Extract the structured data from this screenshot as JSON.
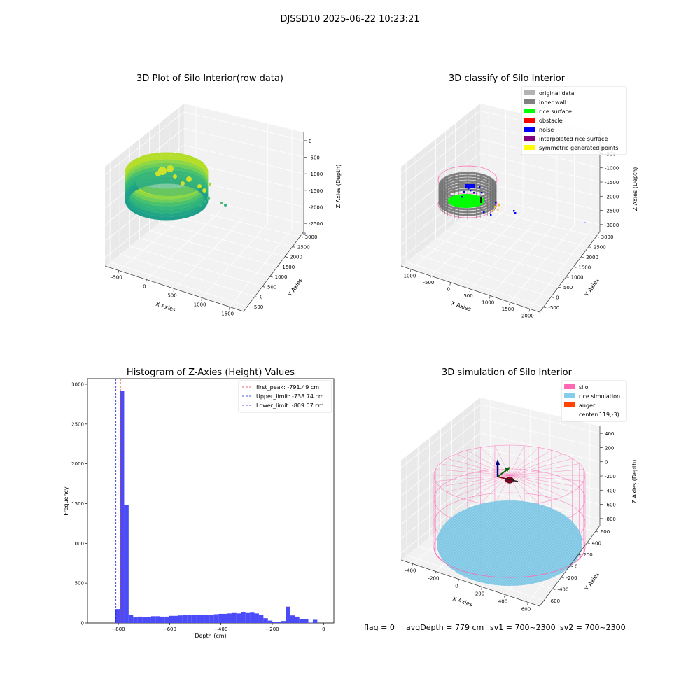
{
  "suptitle": "DJSSD10 2025-06-22 10:23:21",
  "footer": {
    "flag": "flag = 0",
    "avg": "avgDepth = 779 cm",
    "sv1": "sv1 = 700~2300",
    "sv2": "sv2 = 700~2300"
  },
  "colors": {
    "pane": "#f2f2f2",
    "pane_side": "#e9e9e9",
    "grid": "#ffffff",
    "hist_bar": "#4b4bf7",
    "peak_line": "#e53935",
    "limit_line": "#1a1ad9",
    "silo": "#ff69b4",
    "rice": "#87ceeb",
    "auger": "#ff4500",
    "original": "#b3b3b3",
    "inner_wall": "#808080",
    "rice_surface": "#00ff00",
    "obstacle": "#ff0000",
    "noise": "#0000ff",
    "interp": "#800080",
    "symmetric": "#ffff00"
  },
  "chart_data": [
    {
      "type": "scatter",
      "title": "3D Plot of Silo Interior(row data)",
      "xlabel": "X Axies",
      "ylabel": "Y Axies",
      "zlabel": "Z Axies (Depth)",
      "xticks": [
        "-500",
        "0",
        "500",
        "1000",
        "1500"
      ],
      "yticks": [
        "-500",
        "0",
        "500",
        "1000",
        "1500",
        "2000",
        "2500",
        "3000"
      ],
      "zticks": [
        "0",
        "-500",
        "-1000",
        "-1500",
        "-2000",
        "-2500"
      ],
      "colormap": "viridis"
    },
    {
      "type": "scatter",
      "title": "3D classify of Silo Interior",
      "xlabel": "X Axies",
      "ylabel": "Y Axies",
      "zlabel": "Z Axies (Depth)",
      "xticks": [
        "-1000",
        "-500",
        "0",
        "500",
        "1000",
        "1500",
        "2000"
      ],
      "yticks": [
        "-500",
        "0",
        "500",
        "1000",
        "1500",
        "2000",
        "2500",
        "3000"
      ],
      "zticks": [
        "0",
        "-500",
        "-1000",
        "-1500",
        "-2000",
        "-2500",
        "-3000"
      ],
      "legend_position": "top-right",
      "legend": [
        "original data",
        "inner wall",
        "rice surface",
        "obstacle",
        "noise",
        "interpolated rice surface",
        "symmetric generated points"
      ]
    },
    {
      "type": "bar",
      "title": "Histogram of Z-Axies (Height) Values",
      "xlabel": "Depth (cm)",
      "ylabel": "Frequency",
      "xlim": [
        -920,
        40
      ],
      "ylim": [
        0,
        3070
      ],
      "xticks": [
        -800,
        -600,
        -400,
        -200,
        0
      ],
      "yticks": [
        0,
        500,
        1000,
        1500,
        2000,
        2500,
        3000
      ],
      "bin_width": 17.5,
      "bin_start": -812,
      "counts": [
        175,
        2920,
        1480,
        100,
        70,
        80,
        75,
        75,
        85,
        85,
        80,
        80,
        90,
        90,
        95,
        100,
        100,
        105,
        100,
        105,
        105,
        105,
        110,
        115,
        115,
        120,
        125,
        120,
        135,
        125,
        130,
        120,
        100,
        60,
        30,
        10,
        10,
        25,
        205,
        95,
        80,
        45,
        50,
        5,
        40
      ],
      "legend_position": "top-right",
      "first_peak": -791.49,
      "upper_limit": -738.74,
      "lower_limit": -809.07,
      "legend": [
        "first_peak: -791.49 cm",
        "Upper_limit: -738.74 cm",
        "Lower_limit: -809.07 cm"
      ]
    },
    {
      "type": "scatter",
      "title": "3D simulation of Silo Interior",
      "xlabel": "X Axies",
      "ylabel": "Y Axies",
      "zlabel": "Z Axies (Depth)",
      "xticks": [
        "-400",
        "-200",
        "0",
        "200",
        "400",
        "600"
      ],
      "yticks": [
        "-600",
        "-400",
        "-200",
        "0",
        "200",
        "400",
        "600"
      ],
      "zticks": [
        "400",
        "200",
        "0",
        "-200",
        "-400",
        "-600",
        "-800"
      ],
      "legend_position": "top-right",
      "legend": [
        "silo",
        "rice simulation",
        "auger",
        "center(119,-3)"
      ]
    }
  ]
}
